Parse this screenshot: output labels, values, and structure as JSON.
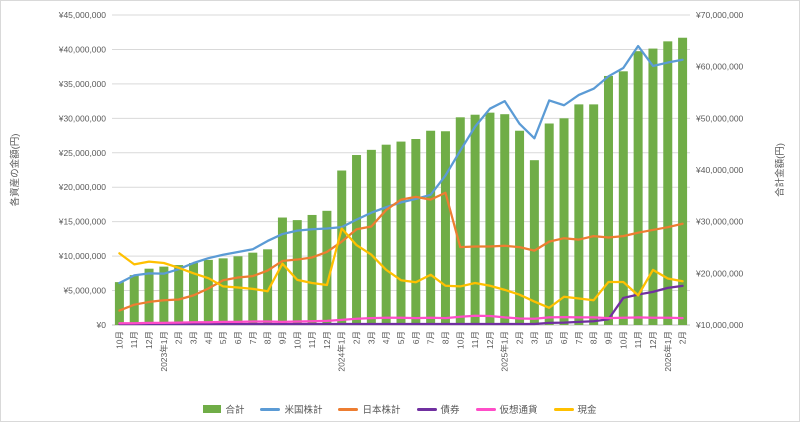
{
  "window": {
    "background": "#FFFFFF",
    "border_color": "#D9D9D9"
  },
  "chart_data": {
    "type": "combo-bar-line",
    "title": "",
    "grid": true,
    "legend_position": "bottom",
    "categories": [
      "10月",
      "11月",
      "12月",
      "2023年1月",
      "2月",
      "3月",
      "4月",
      "5月",
      "6月",
      "7月",
      "8月",
      "9月",
      "10月",
      "11月",
      "12月",
      "2024年1月",
      "2月",
      "3月",
      "4月",
      "5月",
      "6月",
      "7月",
      "8月",
      "10月",
      "11月",
      "12月",
      "2025年1月",
      "2月",
      "3月",
      "5月",
      "6月",
      "7月",
      "8月",
      "9月",
      "10月",
      "11月",
      "12月",
      "2026年1月",
      "2月"
    ],
    "axes": {
      "left": {
        "title": "各資産の金額(円)",
        "min": 0,
        "max": 45000000,
        "step": 5000000,
        "tick_prefix": "¥"
      },
      "right": {
        "title": "合計金額(円)",
        "min": 10000000,
        "max": 70000000,
        "step": 10000000,
        "tick_prefix": "¥"
      }
    },
    "series": [
      {
        "key": "total",
        "name": "合計",
        "type": "bar",
        "axis": "right",
        "color": "#70AD47",
        "values": [
          18300000,
          19650000,
          20900000,
          21300000,
          21600000,
          22000000,
          22600000,
          22900000,
          23300000,
          24000000,
          24650000,
          30800000,
          30300000,
          31300000,
          32100000,
          39900000,
          42900000,
          43900000,
          44900000,
          45500000,
          46000000,
          47600000,
          47500000,
          50200000,
          50700000,
          51100000,
          50800000,
          47600000,
          41900000,
          49000000,
          50000000,
          52700000,
          52700000,
          58200000,
          59100000,
          63000000,
          63500000,
          64900000,
          65600000
        ]
      },
      {
        "key": "us-stocks",
        "name": "米国株計",
        "type": "line",
        "axis": "left",
        "color": "#5B9BD5",
        "values": [
          6100000,
          7200000,
          7500000,
          7450000,
          8100000,
          9000000,
          9700000,
          10200000,
          10600000,
          11000000,
          12200000,
          13200000,
          13700000,
          13900000,
          14000000,
          14200000,
          15300000,
          16300000,
          17100000,
          17800000,
          18300000,
          18900000,
          21700000,
          25300000,
          28800000,
          31400000,
          32500000,
          29200000,
          27100000,
          32600000,
          31900000,
          33400000,
          34300000,
          36100000,
          37300000,
          40500000,
          37600000,
          38100000,
          38500000
        ]
      },
      {
        "key": "jp-stocks",
        "name": "日本株計",
        "type": "line",
        "axis": "left",
        "color": "#ED7D31",
        "values": [
          2100000,
          2950000,
          3350000,
          3600000,
          3700000,
          4300000,
          5300000,
          6500000,
          6900000,
          7100000,
          7900000,
          9300000,
          9500000,
          9800000,
          10600000,
          12100000,
          13900000,
          14300000,
          16700000,
          18200000,
          18600000,
          18200000,
          19200000,
          11300000,
          11400000,
          11400000,
          11500000,
          11300000,
          10800000,
          12100000,
          12600000,
          12400000,
          12900000,
          12700000,
          12900000,
          13400000,
          13800000,
          14200000,
          14700000
        ]
      },
      {
        "key": "bonds",
        "name": "債券",
        "type": "line",
        "axis": "left",
        "color": "#7030A0",
        "values": [
          150000,
          150000,
          150000,
          150000,
          150000,
          150000,
          150000,
          150000,
          150000,
          150000,
          150000,
          150000,
          150000,
          150000,
          150000,
          150000,
          150000,
          150000,
          150000,
          150000,
          150000,
          150000,
          150000,
          150000,
          150000,
          150000,
          150000,
          150000,
          150000,
          300000,
          350000,
          450000,
          540000,
          830000,
          3930000,
          4420000,
          4810000,
          5390000,
          5680000
        ]
      },
      {
        "key": "crypto",
        "name": "仮想通貨",
        "type": "line",
        "axis": "left",
        "color": "#FF4DC8",
        "values": [
          250000,
          250000,
          300000,
          300000,
          350000,
          400000,
          400000,
          450000,
          450000,
          500000,
          500000,
          450000,
          500000,
          550000,
          600000,
          750000,
          900000,
          1000000,
          1050000,
          1050000,
          1000000,
          1050000,
          1000000,
          1200000,
          1350000,
          1300000,
          1100000,
          950000,
          900000,
          1100000,
          1150000,
          1100000,
          1100000,
          1000000,
          1050000,
          1100000,
          1050000,
          1050000,
          1000000
        ]
      },
      {
        "key": "cash",
        "name": "現金",
        "type": "line",
        "axis": "left",
        "color": "#FFC000",
        "values": [
          10400000,
          8800000,
          9200000,
          9000000,
          8300000,
          7500000,
          6800000,
          5600000,
          5450000,
          5250000,
          4900000,
          8900000,
          6550000,
          6100000,
          5800000,
          14000000,
          11600000,
          10200000,
          8000000,
          6500000,
          6200000,
          7300000,
          5700000,
          5600000,
          6100000,
          5700000,
          5100000,
          4400000,
          3400000,
          2500000,
          4100000,
          3850000,
          3600000,
          6250000,
          6250000,
          4300000,
          8000000,
          6750000,
          6350000
        ]
      }
    ],
    "style": {
      "gridline_color": "#D9D9D9",
      "axis_line_color": "#BFBFBF",
      "label_color": "#595959"
    }
  }
}
